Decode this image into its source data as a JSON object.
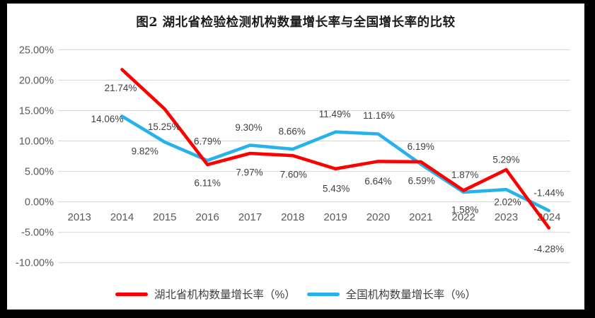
{
  "page": {
    "title": "图2  湖北省检验检测机构数量增长率与全国增长率的比较"
  },
  "colors": {
    "hubei_line": "#FE0000",
    "national_line": "#27B2EC",
    "gridline": "#D6D6D6",
    "axis_text": "#595959",
    "data_label_text": "#404040",
    "frame": "#000000",
    "background": "#FFFFFF"
  },
  "legend": {
    "items": [
      {
        "label": "湖北省机构数量增长率（%）",
        "color": "#FE0000"
      },
      {
        "label": "全国机构数量增长率（%）",
        "color": "#27B2EC"
      }
    ]
  },
  "chart_data": {
    "type": "line",
    "title": "图2  湖北省检验检测机构数量增长率与全国增长率的比较",
    "categories": [
      "2013",
      "2014",
      "2015",
      "2016",
      "2017",
      "2018",
      "2019",
      "2020",
      "2021",
      "2022",
      "2023",
      "2024"
    ],
    "series": [
      {
        "name": "湖北省机构数量增长率（%）",
        "color": "#FE0000",
        "values": [
          null,
          21.74,
          15.25,
          6.11,
          7.97,
          7.6,
          5.43,
          6.64,
          6.59,
          1.87,
          5.29,
          -4.28
        ],
        "data_labels": [
          null,
          "21.74%",
          "15.25%",
          "6.11%",
          "7.97%",
          "7.60%",
          "5.43%",
          "6.64%",
          "6.59%",
          "1.87%",
          "5.29%",
          "-4.28%"
        ]
      },
      {
        "name": "全国机构数量增长率（%）",
        "color": "#27B2EC",
        "values": [
          null,
          14.06,
          9.82,
          6.79,
          9.3,
          8.66,
          11.49,
          11.16,
          6.19,
          1.58,
          2.02,
          -1.44
        ],
        "data_labels": [
          null,
          "14.06%",
          "9.82%",
          "6.79%",
          "9.30%",
          "8.66%",
          "11.49%",
          "11.16%",
          "6.19%",
          "1.58%",
          "2.02%",
          "-1.44%"
        ]
      }
    ],
    "y_axis": {
      "ticks": [
        "25.00%",
        "20.00%",
        "15.00%",
        "10.00%",
        "5.00%",
        "0.00%",
        "-5.00%",
        "-10.00%"
      ],
      "tick_values": [
        25,
        20,
        15,
        10,
        5,
        0,
        -5,
        -10
      ],
      "ylim": [
        -10,
        25
      ]
    },
    "xlabel": "",
    "ylabel": "",
    "grid": "horizontal",
    "legend_position": "bottom"
  }
}
